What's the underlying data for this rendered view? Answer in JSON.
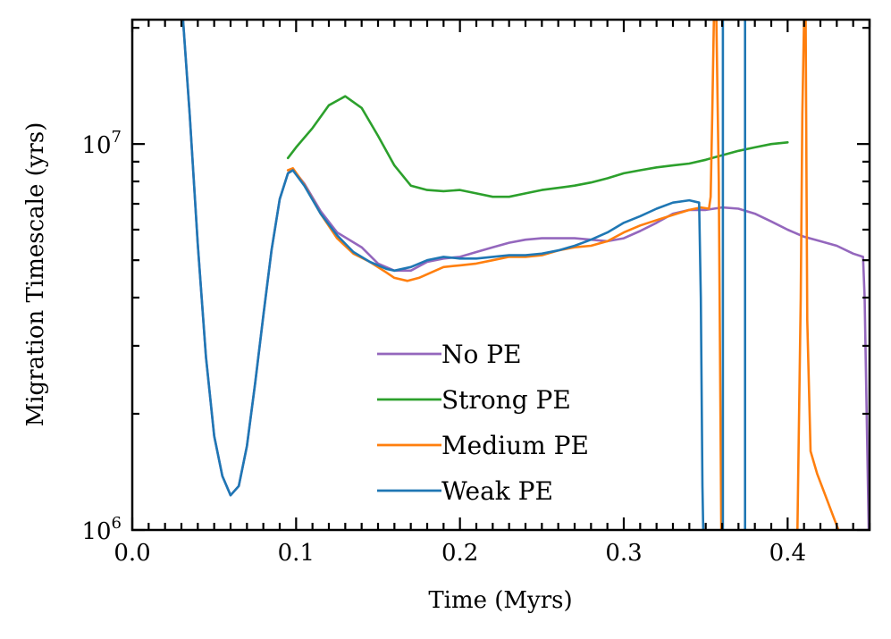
{
  "chart_data": {
    "type": "line",
    "xlabel": "Time (Myrs)",
    "ylabel": "Migration Timescale (yrs)",
    "xlim": [
      0.0,
      0.45
    ],
    "ylim": [
      1000000,
      21000000
    ],
    "yscale": "log",
    "x_ticks": [
      {
        "value": 0.0,
        "label": "0.0"
      },
      {
        "value": 0.1,
        "label": "0.1"
      },
      {
        "value": 0.2,
        "label": "0.2"
      },
      {
        "value": 0.3,
        "label": "0.3"
      },
      {
        "value": 0.4,
        "label": "0.4"
      }
    ],
    "y_ticks": [
      {
        "value": 1000000,
        "base": "10",
        "exp": "6"
      },
      {
        "value": 10000000,
        "base": "10",
        "exp": "7"
      }
    ],
    "legend_position": "lower-center",
    "series": [
      {
        "name": "No PE",
        "color": "#9467bd",
        "points": [
          [
            0.031,
            21000000
          ],
          [
            0.035,
            12000000
          ],
          [
            0.04,
            5500000
          ],
          [
            0.045,
            2800000
          ],
          [
            0.05,
            1750000
          ],
          [
            0.055,
            1380000
          ],
          [
            0.06,
            1230000
          ],
          [
            0.065,
            1300000
          ],
          [
            0.07,
            1650000
          ],
          [
            0.075,
            2400000
          ],
          [
            0.08,
            3600000
          ],
          [
            0.085,
            5300000
          ],
          [
            0.09,
            7200000
          ],
          [
            0.095,
            8400000
          ],
          [
            0.098,
            8600000
          ],
          [
            0.105,
            7900000
          ],
          [
            0.115,
            6700000
          ],
          [
            0.125,
            5900000
          ],
          [
            0.14,
            5400000
          ],
          [
            0.15,
            4900000
          ],
          [
            0.16,
            4700000
          ],
          [
            0.17,
            4700000
          ],
          [
            0.18,
            4950000
          ],
          [
            0.19,
            5050000
          ],
          [
            0.2,
            5100000
          ],
          [
            0.21,
            5250000
          ],
          [
            0.22,
            5400000
          ],
          [
            0.23,
            5550000
          ],
          [
            0.24,
            5650000
          ],
          [
            0.25,
            5700000
          ],
          [
            0.26,
            5700000
          ],
          [
            0.27,
            5700000
          ],
          [
            0.28,
            5650000
          ],
          [
            0.29,
            5600000
          ],
          [
            0.3,
            5700000
          ],
          [
            0.31,
            5950000
          ],
          [
            0.32,
            6250000
          ],
          [
            0.33,
            6600000
          ],
          [
            0.34,
            6750000
          ],
          [
            0.35,
            6750000
          ],
          [
            0.36,
            6850000
          ],
          [
            0.37,
            6800000
          ],
          [
            0.38,
            6600000
          ],
          [
            0.39,
            6300000
          ],
          [
            0.4,
            6000000
          ],
          [
            0.41,
            5750000
          ],
          [
            0.42,
            5600000
          ],
          [
            0.43,
            5450000
          ],
          [
            0.44,
            5200000
          ],
          [
            0.446,
            5100000
          ],
          [
            0.447,
            4000000
          ],
          [
            0.449,
            1300000
          ],
          [
            0.4495,
            1000000
          ]
        ]
      },
      {
        "name": "Strong PE",
        "color": "#2ca02c",
        "points": [
          [
            0.095,
            9200000
          ],
          [
            0.1,
            9800000
          ],
          [
            0.11,
            11000000
          ],
          [
            0.12,
            12600000
          ],
          [
            0.13,
            13300000
          ],
          [
            0.14,
            12400000
          ],
          [
            0.15,
            10500000
          ],
          [
            0.16,
            8800000
          ],
          [
            0.17,
            7800000
          ],
          [
            0.18,
            7600000
          ],
          [
            0.19,
            7550000
          ],
          [
            0.2,
            7600000
          ],
          [
            0.21,
            7450000
          ],
          [
            0.22,
            7300000
          ],
          [
            0.23,
            7300000
          ],
          [
            0.24,
            7450000
          ],
          [
            0.25,
            7600000
          ],
          [
            0.26,
            7700000
          ],
          [
            0.27,
            7800000
          ],
          [
            0.28,
            7950000
          ],
          [
            0.29,
            8150000
          ],
          [
            0.3,
            8400000
          ],
          [
            0.31,
            8550000
          ],
          [
            0.32,
            8700000
          ],
          [
            0.33,
            8800000
          ],
          [
            0.34,
            8900000
          ],
          [
            0.35,
            9100000
          ],
          [
            0.36,
            9350000
          ],
          [
            0.37,
            9600000
          ],
          [
            0.38,
            9800000
          ],
          [
            0.39,
            10000000
          ],
          [
            0.4,
            10100000
          ]
        ]
      },
      {
        "name": "Medium PE",
        "color": "#ff7f0e",
        "points": [
          [
            0.095,
            8550000
          ],
          [
            0.098,
            8650000
          ],
          [
            0.105,
            7850000
          ],
          [
            0.115,
            6600000
          ],
          [
            0.125,
            5700000
          ],
          [
            0.135,
            5200000
          ],
          [
            0.145,
            4950000
          ],
          [
            0.155,
            4650000
          ],
          [
            0.16,
            4500000
          ],
          [
            0.168,
            4420000
          ],
          [
            0.175,
            4500000
          ],
          [
            0.185,
            4700000
          ],
          [
            0.19,
            4800000
          ],
          [
            0.2,
            4850000
          ],
          [
            0.21,
            4900000
          ],
          [
            0.22,
            5000000
          ],
          [
            0.23,
            5100000
          ],
          [
            0.24,
            5100000
          ],
          [
            0.25,
            5150000
          ],
          [
            0.26,
            5300000
          ],
          [
            0.27,
            5400000
          ],
          [
            0.28,
            5450000
          ],
          [
            0.29,
            5600000
          ],
          [
            0.3,
            5900000
          ],
          [
            0.31,
            6150000
          ],
          [
            0.32,
            6350000
          ],
          [
            0.33,
            6550000
          ],
          [
            0.34,
            6750000
          ],
          [
            0.347,
            6850000
          ],
          [
            0.352,
            6800000
          ],
          [
            0.353,
            7300000
          ],
          [
            0.354,
            12000000
          ],
          [
            0.355,
            21000000
          ],
          [
            0.3565,
            21000000
          ],
          [
            0.358,
            8000000
          ],
          [
            0.3595,
            1000000
          ]
        ]
      },
      {
        "name": "Medium PE (late segment)",
        "color": "#ff7f0e",
        "points": [
          [
            0.406,
            1000000
          ],
          [
            0.408,
            4000000
          ],
          [
            0.409,
            12000000
          ],
          [
            0.41,
            21000000
          ],
          [
            0.411,
            21000000
          ],
          [
            0.412,
            3500000
          ],
          [
            0.414,
            1600000
          ],
          [
            0.418,
            1400000
          ],
          [
            0.423,
            1230000
          ],
          [
            0.428,
            1080000
          ],
          [
            0.431,
            1000000
          ]
        ]
      },
      {
        "name": "Weak PE",
        "color": "#1f77b4",
        "points": [
          [
            0.031,
            21000000
          ],
          [
            0.035,
            12000000
          ],
          [
            0.04,
            5500000
          ],
          [
            0.045,
            2800000
          ],
          [
            0.05,
            1750000
          ],
          [
            0.055,
            1380000
          ],
          [
            0.06,
            1230000
          ],
          [
            0.065,
            1300000
          ],
          [
            0.07,
            1650000
          ],
          [
            0.075,
            2400000
          ],
          [
            0.08,
            3600000
          ],
          [
            0.085,
            5300000
          ],
          [
            0.09,
            7200000
          ],
          [
            0.095,
            8400000
          ],
          [
            0.098,
            8550000
          ],
          [
            0.105,
            7800000
          ],
          [
            0.115,
            6600000
          ],
          [
            0.125,
            5800000
          ],
          [
            0.135,
            5250000
          ],
          [
            0.145,
            4950000
          ],
          [
            0.155,
            4750000
          ],
          [
            0.16,
            4700000
          ],
          [
            0.17,
            4800000
          ],
          [
            0.18,
            5000000
          ],
          [
            0.19,
            5100000
          ],
          [
            0.2,
            5050000
          ],
          [
            0.21,
            5050000
          ],
          [
            0.22,
            5100000
          ],
          [
            0.23,
            5150000
          ],
          [
            0.24,
            5150000
          ],
          [
            0.25,
            5200000
          ],
          [
            0.26,
            5300000
          ],
          [
            0.27,
            5450000
          ],
          [
            0.28,
            5650000
          ],
          [
            0.29,
            5900000
          ],
          [
            0.3,
            6250000
          ],
          [
            0.31,
            6500000
          ],
          [
            0.32,
            6800000
          ],
          [
            0.33,
            7050000
          ],
          [
            0.34,
            7150000
          ],
          [
            0.346,
            7050000
          ],
          [
            0.347,
            4000000
          ],
          [
            0.348,
            1300000
          ],
          [
            0.3485,
            1000000
          ]
        ]
      },
      {
        "name": "Weak PE (spike 1)",
        "color": "#1f77b4",
        "points": [
          [
            0.3605,
            1000000
          ],
          [
            0.3605,
            21000000
          ]
        ]
      },
      {
        "name": "Weak PE (spike 2)",
        "color": "#1f77b4",
        "points": [
          [
            0.374,
            1000000
          ],
          [
            0.374,
            21000000
          ]
        ]
      }
    ],
    "legend": [
      {
        "label": "No PE",
        "color": "#9467bd"
      },
      {
        "label": "Strong PE",
        "color": "#2ca02c"
      },
      {
        "label": "Medium PE",
        "color": "#ff7f0e"
      },
      {
        "label": "Weak PE",
        "color": "#1f77b4"
      }
    ]
  }
}
